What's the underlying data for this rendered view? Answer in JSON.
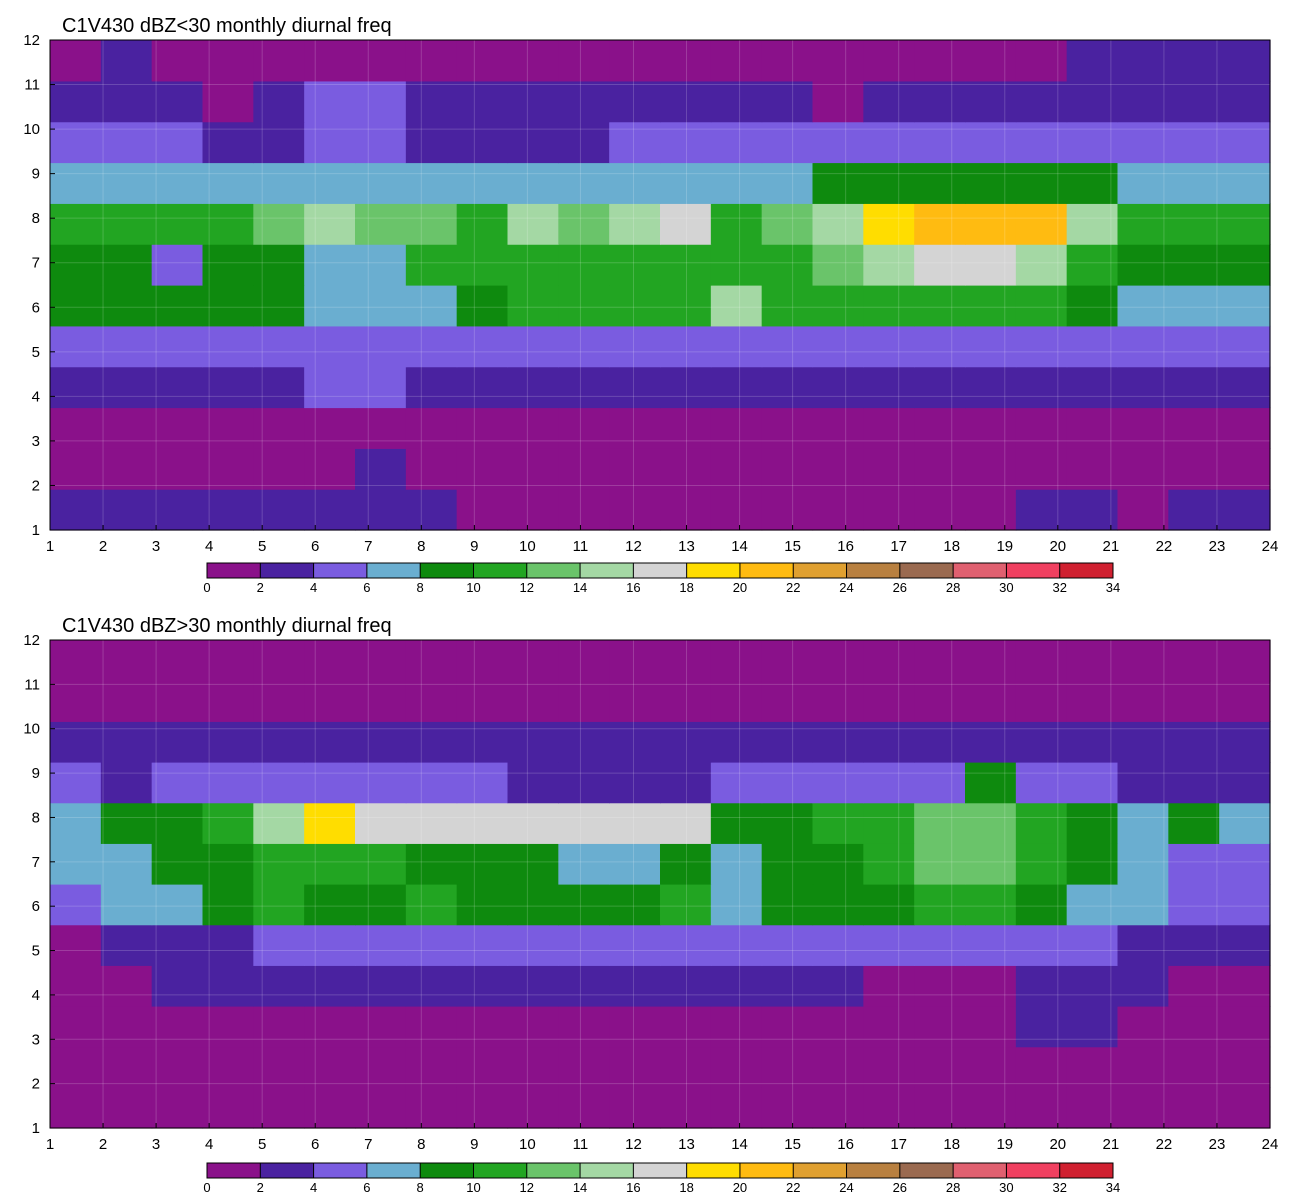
{
  "chart_data": [
    {
      "type": "heatmap",
      "subtype": "filled-contour",
      "title": "C1V430 dBZ<30 monthly diurnal freq",
      "xlabel": "",
      "ylabel": "",
      "x_ticks": [
        "1",
        "2",
        "3",
        "4",
        "5",
        "6",
        "7",
        "8",
        "9",
        "10",
        "11",
        "12",
        "13",
        "14",
        "15",
        "16",
        "17",
        "18",
        "19",
        "20",
        "21",
        "22",
        "23",
        "24"
      ],
      "y_ticks": [
        "1",
        "2",
        "3",
        "4",
        "5",
        "6",
        "7",
        "8",
        "9",
        "10",
        "11",
        "12"
      ],
      "xlim": [
        1,
        24
      ],
      "ylim": [
        1,
        12
      ],
      "grid": true,
      "rows_bottom_to_top": [
        [
          3,
          3,
          3,
          3,
          3,
          3,
          3,
          3,
          1,
          1,
          1,
          1,
          1,
          1,
          1,
          1,
          1,
          1,
          1,
          3,
          3,
          1,
          3,
          3
        ],
        [
          1,
          1,
          1,
          1,
          1,
          1,
          3,
          1,
          1,
          1,
          1,
          1,
          1,
          1,
          1,
          1,
          1,
          1,
          1,
          1,
          1,
          1,
          1,
          1
        ],
        [
          1,
          1,
          1,
          1,
          1,
          1,
          1,
          1,
          1,
          1,
          1,
          1,
          1,
          1,
          1,
          1,
          1,
          1,
          1,
          1,
          1,
          1,
          1,
          1
        ],
        [
          3,
          3,
          3,
          3,
          3,
          5,
          5,
          3,
          3,
          3,
          3,
          3,
          3,
          3,
          3,
          3,
          3,
          3,
          3,
          3,
          3,
          3,
          3,
          3
        ],
        [
          5,
          5,
          5,
          5,
          5,
          5,
          5,
          5,
          5,
          5,
          5,
          5,
          5,
          5,
          5,
          5,
          5,
          5,
          5,
          5,
          5,
          5,
          5,
          5
        ],
        [
          9,
          9,
          9,
          9,
          9,
          7,
          7,
          7,
          9,
          11,
          11,
          11,
          11,
          15,
          11,
          11,
          11,
          11,
          11,
          11,
          9,
          7,
          7,
          7
        ],
        [
          9,
          9,
          5,
          9,
          9,
          7,
          7,
          11,
          11,
          11,
          11,
          11,
          11,
          11,
          11,
          13,
          15,
          17,
          17,
          15,
          11,
          9,
          9,
          9
        ],
        [
          11,
          11,
          11,
          11,
          13,
          15,
          13,
          13,
          11,
          15,
          13,
          15,
          17,
          11,
          13,
          15,
          19,
          21,
          21,
          21,
          15,
          11,
          11,
          11
        ],
        [
          7,
          7,
          7,
          7,
          7,
          7,
          7,
          7,
          7,
          7,
          7,
          7,
          7,
          7,
          7,
          9,
          9,
          9,
          9,
          9,
          9,
          7,
          7,
          7
        ],
        [
          5,
          5,
          5,
          3,
          3,
          5,
          5,
          3,
          3,
          3,
          3,
          5,
          5,
          5,
          5,
          5,
          5,
          5,
          5,
          5,
          5,
          5,
          5,
          5
        ],
        [
          3,
          3,
          3,
          1,
          3,
          5,
          5,
          3,
          3,
          3,
          3,
          3,
          3,
          3,
          3,
          1,
          3,
          3,
          3,
          3,
          3,
          3,
          3,
          3
        ],
        [
          1,
          3,
          1,
          1,
          1,
          1,
          1,
          1,
          1,
          1,
          1,
          1,
          1,
          1,
          1,
          1,
          1,
          1,
          1,
          1,
          3,
          3,
          3,
          3
        ]
      ]
    },
    {
      "type": "heatmap",
      "subtype": "filled-contour",
      "title": "C1V430 dBZ>30 monthly diurnal freq",
      "xlabel": "",
      "ylabel": "",
      "x_ticks": [
        "1",
        "2",
        "3",
        "4",
        "5",
        "6",
        "7",
        "8",
        "9",
        "10",
        "11",
        "12",
        "13",
        "14",
        "15",
        "16",
        "17",
        "18",
        "19",
        "20",
        "21",
        "22",
        "23",
        "24"
      ],
      "y_ticks": [
        "1",
        "2",
        "3",
        "4",
        "5",
        "6",
        "7",
        "8",
        "9",
        "10",
        "11",
        "12"
      ],
      "xlim": [
        1,
        24
      ],
      "ylim": [
        1,
        12
      ],
      "grid": true,
      "rows_bottom_to_top": [
        [
          1,
          1,
          1,
          1,
          1,
          1,
          1,
          1,
          1,
          1,
          1,
          1,
          1,
          1,
          1,
          1,
          1,
          1,
          1,
          1,
          1,
          1,
          1,
          1
        ],
        [
          1,
          1,
          1,
          1,
          1,
          1,
          1,
          1,
          1,
          1,
          1,
          1,
          1,
          1,
          1,
          1,
          1,
          1,
          1,
          1,
          1,
          1,
          1,
          1
        ],
        [
          1,
          1,
          1,
          1,
          1,
          1,
          1,
          1,
          1,
          1,
          1,
          1,
          1,
          1,
          1,
          1,
          1,
          1,
          1,
          3,
          3,
          1,
          1,
          1
        ],
        [
          1,
          1,
          3,
          3,
          3,
          3,
          3,
          3,
          3,
          3,
          3,
          3,
          3,
          3,
          3,
          3,
          1,
          1,
          1,
          3,
          3,
          3,
          1,
          1
        ],
        [
          1,
          3,
          3,
          3,
          5,
          5,
          5,
          5,
          5,
          5,
          5,
          5,
          5,
          5,
          5,
          5,
          5,
          5,
          5,
          5,
          5,
          3,
          3,
          3
        ],
        [
          5,
          7,
          7,
          9,
          11,
          9,
          9,
          11,
          9,
          9,
          9,
          9,
          11,
          7,
          9,
          9,
          9,
          11,
          11,
          9,
          7,
          7,
          5,
          5
        ],
        [
          7,
          7,
          9,
          9,
          11,
          11,
          11,
          9,
          9,
          9,
          7,
          7,
          9,
          7,
          9,
          9,
          11,
          13,
          13,
          11,
          9,
          7,
          5,
          5
        ],
        [
          7,
          9,
          9,
          11,
          15,
          19,
          17,
          17,
          17,
          17,
          17,
          17,
          17,
          9,
          9,
          11,
          11,
          13,
          13,
          11,
          9,
          7,
          9,
          7
        ],
        [
          5,
          3,
          5,
          5,
          5,
          5,
          5,
          5,
          5,
          3,
          3,
          3,
          3,
          5,
          5,
          5,
          5,
          5,
          9,
          5,
          5,
          3,
          3,
          3
        ],
        [
          3,
          3,
          3,
          3,
          3,
          3,
          3,
          3,
          3,
          3,
          3,
          3,
          3,
          3,
          3,
          3,
          3,
          3,
          3,
          3,
          3,
          3,
          3,
          3
        ],
        [
          1,
          1,
          1,
          1,
          1,
          1,
          1,
          1,
          1,
          1,
          1,
          1,
          1,
          1,
          1,
          1,
          1,
          1,
          1,
          1,
          1,
          1,
          1,
          1
        ],
        [
          1,
          1,
          1,
          1,
          1,
          1,
          1,
          1,
          1,
          1,
          1,
          1,
          1,
          1,
          1,
          1,
          1,
          1,
          1,
          1,
          1,
          1,
          1,
          1
        ]
      ]
    }
  ],
  "colorbar": {
    "labels": [
      "0",
      "2",
      "4",
      "6",
      "8",
      "10",
      "12",
      "14",
      "16",
      "18",
      "20",
      "22",
      "24",
      "26",
      "28",
      "30",
      "32",
      "34"
    ],
    "colors": [
      "#8a118a",
      "#4a22a0",
      "#7a5ce0",
      "#6aaed0",
      "#0e8a0e",
      "#22a522",
      "#6ac46a",
      "#a4d8a4",
      "#d4d4d4",
      "#ffdd00",
      "#ffbb11",
      "#e0a030",
      "#b88040",
      "#9a6a50",
      "#e06070",
      "#f04060",
      "#d02030"
    ]
  }
}
